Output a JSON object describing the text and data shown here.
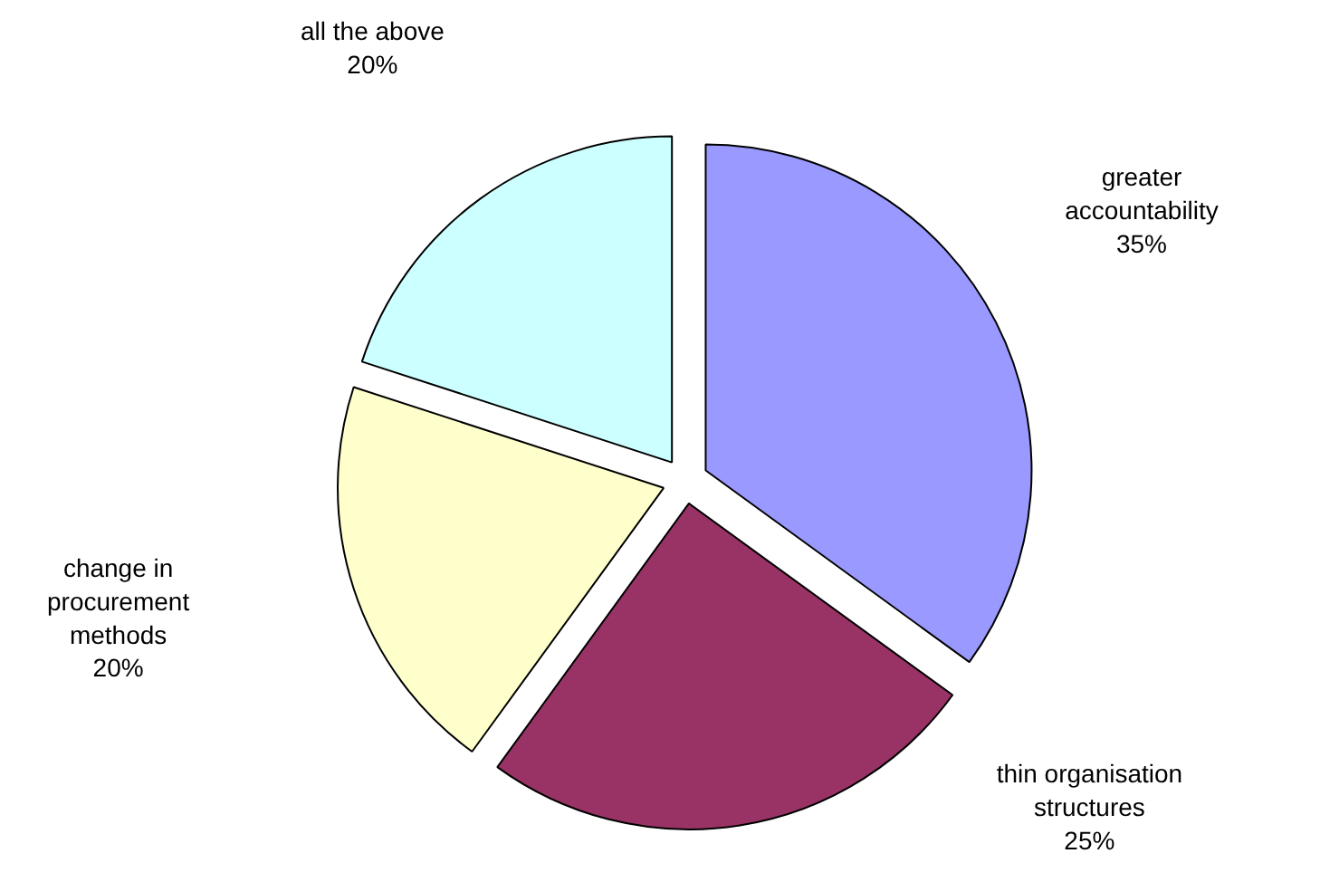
{
  "chart_data": {
    "type": "pie",
    "categories": [
      "greater accountability",
      "thin organisation structures",
      "change in procurement methods",
      "all the above"
    ],
    "values": [
      35,
      25,
      20,
      20
    ],
    "colors": [
      "#9999ff",
      "#993366",
      "#ffffcc",
      "#ccffff"
    ],
    "value_labels": [
      "35%",
      "25%",
      "20%",
      "20%"
    ]
  }
}
